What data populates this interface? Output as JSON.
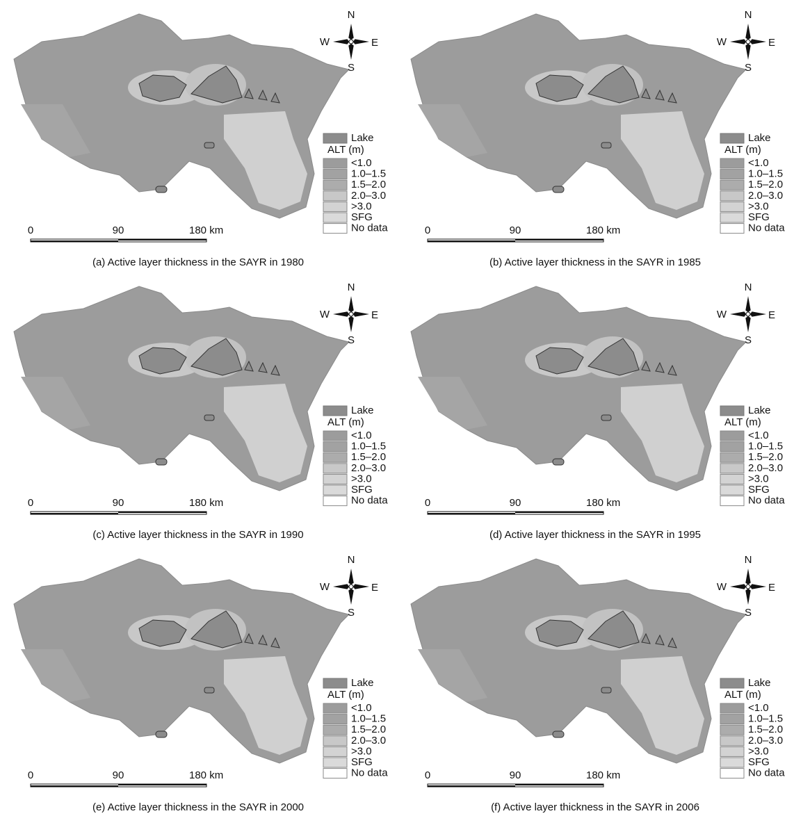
{
  "compass": {
    "north": "N",
    "south": "S",
    "east": "E",
    "west": "W"
  },
  "legend": {
    "lake": "Lake",
    "title": "ALT (m)",
    "items": [
      "<1.0",
      "1.0–1.5",
      "1.5–2.0",
      "2.0–3.0",
      ">3.0",
      "SFG",
      "No data"
    ]
  },
  "scale_bar": {
    "labels": [
      "0",
      "90",
      "180 km"
    ]
  },
  "panels": [
    {
      "caption": "(a) Active layer thickness in the SAYR in 1980"
    },
    {
      "caption": "(b) Active layer thickness in the SAYR in 1985"
    },
    {
      "caption": "(c) Active layer thickness in the SAYR in 1990"
    },
    {
      "caption": "(d) Active layer thickness in the SAYR in 1995"
    },
    {
      "caption": "(e) Active layer thickness in the SAYR in 2000"
    },
    {
      "caption": "(f) Active layer thickness in the SAYR in 2006"
    }
  ]
}
